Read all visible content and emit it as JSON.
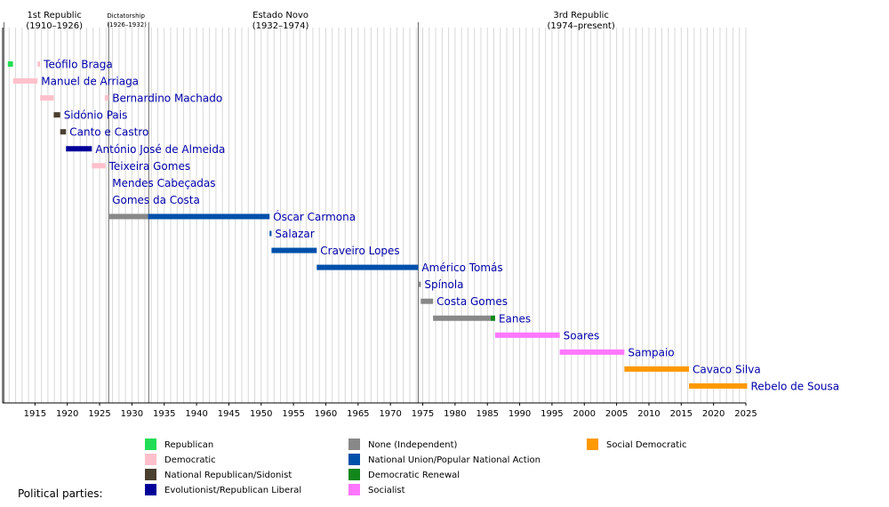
{
  "chart_data": {
    "type": "timeline",
    "x_axis": {
      "range": [
        1910,
        2025
      ],
      "tick_labels": [
        1915,
        1920,
        1925,
        1930,
        1935,
        1940,
        1945,
        1950,
        1955,
        1960,
        1965,
        1970,
        1975,
        1980,
        1985,
        1990,
        1995,
        2000,
        2005,
        2010,
        2015,
        2020,
        2025
      ],
      "minor_grid_step_years": 1,
      "grid": true
    },
    "eras": [
      {
        "lines": [
          "1st Republic",
          "(1910–1926)"
        ],
        "start": 1910,
        "end": 1926,
        "small": false
      },
      {
        "lines": [
          "Dictatorship",
          "(1926–1932)"
        ],
        "start": 1926,
        "end": 1932,
        "small": true
      },
      {
        "lines": [
          "Estado Novo",
          "(1932–1974)"
        ],
        "start": 1932,
        "end": 1974,
        "small": false
      },
      {
        "lines": [
          "3rd Republic",
          "(1974–present)"
        ],
        "start": 1974,
        "end": 2025,
        "small": false
      }
    ],
    "era_dividers": [
      1910.2,
      1926.4,
      1932.6,
      1974.3
    ],
    "parties": {
      "republican": {
        "label": "Republican",
        "color": "#22dd55"
      },
      "democratic": {
        "label": "Democratic",
        "color": "#ffc0cb"
      },
      "sidonist": {
        "label": "National Republican/Sidonist",
        "color": "#4a4030"
      },
      "evolutionist": {
        "label": "Evolutionist/Republican Liberal",
        "color": "#000099"
      },
      "independent": {
        "label": "None (Independent)",
        "color": "#888888"
      },
      "national_union": {
        "label": "National Union/Popular National Action",
        "color": "#0050aa"
      },
      "democratic_renewal": {
        "label": "Democratic Renewal",
        "color": "#11871b"
      },
      "socialist": {
        "label": "Socialist",
        "color": "#ff77ff"
      },
      "social_democratic": {
        "label": "Social Democratic",
        "color": "#ff9900"
      }
    },
    "legend_order": [
      "republican",
      "democratic",
      "sidonist",
      "evolutionist",
      "independent",
      "national_union",
      "democratic_renewal",
      "socialist",
      "social_democratic"
    ],
    "legend_title": "Political parties:",
    "presidents": [
      {
        "name": "Teófilo Braga",
        "segments": [
          {
            "party": "republican",
            "start": 1910.8,
            "end": 1911.6
          },
          {
            "party": "democratic",
            "start": 1915.4,
            "end": 1915.8
          }
        ]
      },
      {
        "name": "Manuel de Arriaga",
        "segments": [
          {
            "party": "democratic",
            "start": 1911.6,
            "end": 1915.4
          }
        ]
      },
      {
        "name": "Bernardino Machado",
        "segments": [
          {
            "party": "democratic",
            "start": 1915.8,
            "end": 1917.9
          },
          {
            "party": "democratic",
            "start": 1925.8,
            "end": 1926.4
          }
        ]
      },
      {
        "name": "Sidónio Pais",
        "segments": [
          {
            "party": "sidonist",
            "start": 1917.9,
            "end": 1918.9
          }
        ]
      },
      {
        "name": "Canto e Castro",
        "segments": [
          {
            "party": "sidonist",
            "start": 1918.9,
            "end": 1919.8
          }
        ]
      },
      {
        "name": "António José de Almeida",
        "segments": [
          {
            "party": "evolutionist",
            "start": 1919.8,
            "end": 1923.8
          }
        ]
      },
      {
        "name": "Teixeira Gomes",
        "segments": [
          {
            "party": "democratic",
            "start": 1923.8,
            "end": 1925.9
          }
        ]
      },
      {
        "name": "Mendes Cabeçadas",
        "segments": []
      },
      {
        "name": "Gomes da Costa",
        "segments": []
      },
      {
        "name": "Óscar Carmona",
        "segments": [
          {
            "party": "independent",
            "start": 1926.5,
            "end": 1932.5
          },
          {
            "party": "national_union",
            "start": 1932.5,
            "end": 1951.3
          }
        ]
      },
      {
        "name": "Salazar",
        "segments": [
          {
            "party": "national_union",
            "start": 1951.3,
            "end": 1951.6
          }
        ]
      },
      {
        "name": "Craveiro Lopes",
        "segments": [
          {
            "party": "national_union",
            "start": 1951.6,
            "end": 1958.6
          }
        ]
      },
      {
        "name": "Américo Tomás",
        "segments": [
          {
            "party": "national_union",
            "start": 1958.6,
            "end": 1974.3
          }
        ]
      },
      {
        "name": "Spínola",
        "segments": [
          {
            "party": "independent",
            "start": 1974.3,
            "end": 1974.7
          }
        ]
      },
      {
        "name": "Costa Gomes",
        "segments": [
          {
            "party": "independent",
            "start": 1974.7,
            "end": 1976.6
          }
        ]
      },
      {
        "name": "Eanes",
        "segments": [
          {
            "party": "independent",
            "start": 1976.6,
            "end": 1985.5
          },
          {
            "party": "democratic_renewal",
            "start": 1985.5,
            "end": 1986.2
          }
        ]
      },
      {
        "name": "Soares",
        "segments": [
          {
            "party": "socialist",
            "start": 1986.2,
            "end": 1996.2
          }
        ]
      },
      {
        "name": "Sampaio",
        "segments": [
          {
            "party": "socialist",
            "start": 1996.2,
            "end": 2006.2
          }
        ]
      },
      {
        "name": "Cavaco Silva",
        "segments": [
          {
            "party": "social_democratic",
            "start": 2006.2,
            "end": 2016.2
          }
        ]
      },
      {
        "name": "Rebelo de Sousa",
        "segments": [
          {
            "party": "social_democratic",
            "start": 2016.2,
            "end": 2025.2
          }
        ]
      }
    ],
    "label_after_year": {
      "Teófilo Braga": 1915.8,
      "Manuel de Arriaga": 1915.4,
      "Bernardino Machado": 1926.4,
      "Mendes Cabeçadas": 1926.4,
      "Gomes da Costa": 1926.4
    }
  }
}
